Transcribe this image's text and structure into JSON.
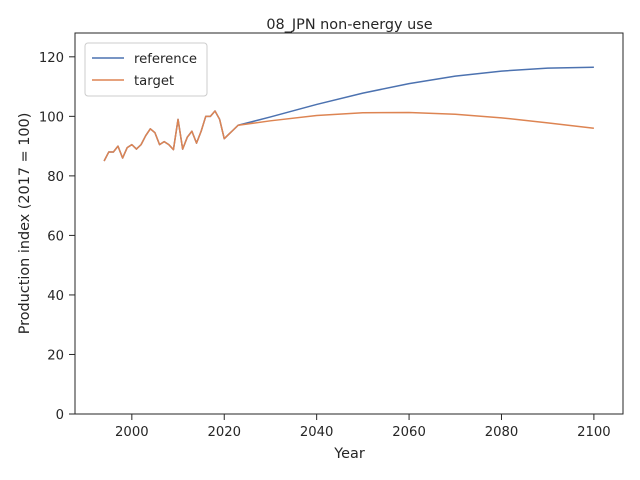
{
  "chart_data": {
    "type": "line",
    "title": "08_JPN non-energy use",
    "xlabel": "Year",
    "ylabel": "Production index (2017 = 100)",
    "xlim": [
      1987.7,
      2106.3
    ],
    "ylim": [
      0,
      128
    ],
    "xticks": [
      2000,
      2020,
      2040,
      2060,
      2080,
      2100
    ],
    "yticks": [
      0,
      20,
      40,
      60,
      80,
      100,
      120
    ],
    "grid": false,
    "legend_position": "top-left",
    "series": [
      {
        "name": "reference",
        "color": "#4c72b0",
        "points": [
          [
            1994,
            85.0
          ],
          [
            1995,
            88.0
          ],
          [
            1996,
            88.0
          ],
          [
            1997,
            90.0
          ],
          [
            1998,
            86.0
          ],
          [
            1999,
            89.5
          ],
          [
            2000,
            90.5
          ],
          [
            2001,
            89.0
          ],
          [
            2002,
            90.5
          ],
          [
            2003,
            93.5
          ],
          [
            2004,
            95.8
          ],
          [
            2005,
            94.5
          ],
          [
            2006,
            90.5
          ],
          [
            2007,
            91.5
          ],
          [
            2008,
            90.5
          ],
          [
            2009,
            88.8
          ],
          [
            2010,
            99.0
          ],
          [
            2011,
            89.0
          ],
          [
            2012,
            93.0
          ],
          [
            2013,
            95.0
          ],
          [
            2014,
            91.0
          ],
          [
            2015,
            95.0
          ],
          [
            2016,
            100.0
          ],
          [
            2017,
            100.0
          ],
          [
            2018,
            101.8
          ],
          [
            2019,
            99.0
          ],
          [
            2020,
            92.5
          ],
          [
            2021,
            94.0
          ],
          [
            2022,
            95.5
          ],
          [
            2023,
            97.0
          ],
          [
            2030,
            99.8
          ],
          [
            2040,
            104.0
          ],
          [
            2050,
            107.8
          ],
          [
            2060,
            111.0
          ],
          [
            2070,
            113.5
          ],
          [
            2080,
            115.2
          ],
          [
            2090,
            116.2
          ],
          [
            2100,
            116.5
          ]
        ]
      },
      {
        "name": "target",
        "color": "#dd8452",
        "points": [
          [
            1994,
            85.0
          ],
          [
            1995,
            88.0
          ],
          [
            1996,
            88.0
          ],
          [
            1997,
            90.0
          ],
          [
            1998,
            86.0
          ],
          [
            1999,
            89.5
          ],
          [
            2000,
            90.5
          ],
          [
            2001,
            89.0
          ],
          [
            2002,
            90.5
          ],
          [
            2003,
            93.5
          ],
          [
            2004,
            95.8
          ],
          [
            2005,
            94.5
          ],
          [
            2006,
            90.5
          ],
          [
            2007,
            91.5
          ],
          [
            2008,
            90.5
          ],
          [
            2009,
            88.8
          ],
          [
            2010,
            99.0
          ],
          [
            2011,
            89.0
          ],
          [
            2012,
            93.0
          ],
          [
            2013,
            95.0
          ],
          [
            2014,
            91.0
          ],
          [
            2015,
            95.0
          ],
          [
            2016,
            100.0
          ],
          [
            2017,
            100.0
          ],
          [
            2018,
            101.8
          ],
          [
            2019,
            99.0
          ],
          [
            2020,
            92.5
          ],
          [
            2021,
            94.0
          ],
          [
            2022,
            95.5
          ],
          [
            2023,
            97.0
          ],
          [
            2030,
            98.5
          ],
          [
            2040,
            100.3
          ],
          [
            2050,
            101.2
          ],
          [
            2060,
            101.3
          ],
          [
            2070,
            100.7
          ],
          [
            2080,
            99.5
          ],
          [
            2090,
            97.8
          ],
          [
            2100,
            96.0
          ]
        ]
      }
    ]
  }
}
